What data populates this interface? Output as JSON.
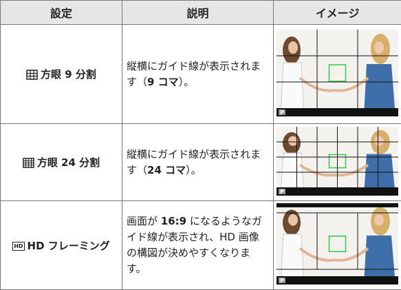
{
  "table": {
    "header": [
      "設定",
      "説明",
      "イメージ"
    ],
    "rows": [
      {
        "setting": "方眼 9 分割",
        "description": [
          "縦横にガイド線が表示されます（",
          "9 コマ",
          "）。"
        ],
        "badge": "P"
      },
      {
        "setting": "方眼 24 分割",
        "description": [
          "縦横にガイド線が表示されます（",
          "24 コマ",
          "）。"
        ],
        "badge": "P"
      },
      {
        "icon": "HD",
        "setting": "HD フレーミング",
        "description": [
          "画面が ",
          "16:9",
          " になるようなガイド線が表示され、HD 画像の構図が決めやすくなります。"
        ],
        "badge": "P"
      }
    ]
  }
}
